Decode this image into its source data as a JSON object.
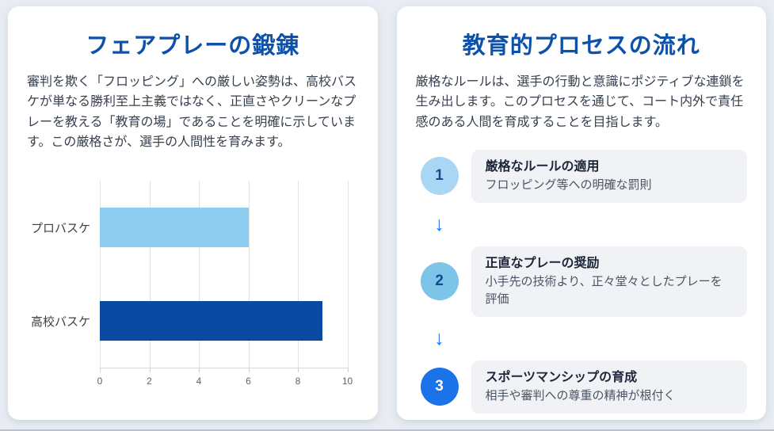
{
  "colors": {
    "accent_title": "#0d52aa",
    "page_background": "#e9edf3",
    "card_background": "#ffffff",
    "step_card_background": "#f0f2f5",
    "arrow": "#1a73e8"
  },
  "left_panel": {
    "title": "フェアプレーの鍛錬",
    "description": "審判を欺く「フロッピング」への厳しい姿勢は、高校バスケが単なる勝利至上主義ではなく、正直さやクリーンなプレーを教える「教育の場」であることを明確に示しています。この厳格さが、選手の人間性を育みます。"
  },
  "chart_data": {
    "type": "bar",
    "orientation": "horizontal",
    "title": "",
    "xlabel": "",
    "ylabel": "",
    "categories": [
      "プロバスケ",
      "高校バスケ"
    ],
    "values": [
      6,
      9
    ],
    "bar_colors": [
      "#8ecdf0",
      "#0b4aa2"
    ],
    "xlim": [
      0,
      10
    ],
    "x_ticks": [
      0,
      2,
      4,
      6,
      8,
      10
    ],
    "grid": "vertical-on",
    "legend": "none"
  },
  "right_panel": {
    "title": "教育的プロセスの流れ",
    "description": "厳格なルールは、選手の行動と意識にポジティブな連鎖を生み出します。このプロセスを通じて、コート内外で責任感のある人間を育成することを目指します。",
    "arrow_glyph": "↓",
    "steps": [
      {
        "number": "1",
        "title": "厳格なルールの適用",
        "subtitle": "フロッピング等への明確な罰則",
        "circle_bg": "#a9d6f5",
        "circle_color": "#174a8c"
      },
      {
        "number": "2",
        "title": "正直なプレーの奨励",
        "subtitle": "小手先の技術より、正々堂々としたプレーを評価",
        "circle_bg": "#7cc4e8",
        "circle_color": "#174a8c"
      },
      {
        "number": "3",
        "title": "スポーツマンシップの育成",
        "subtitle": "相手や審判への尊重の精神が根付く",
        "circle_bg": "#1a73e8",
        "circle_color": "#ffffff"
      }
    ]
  }
}
